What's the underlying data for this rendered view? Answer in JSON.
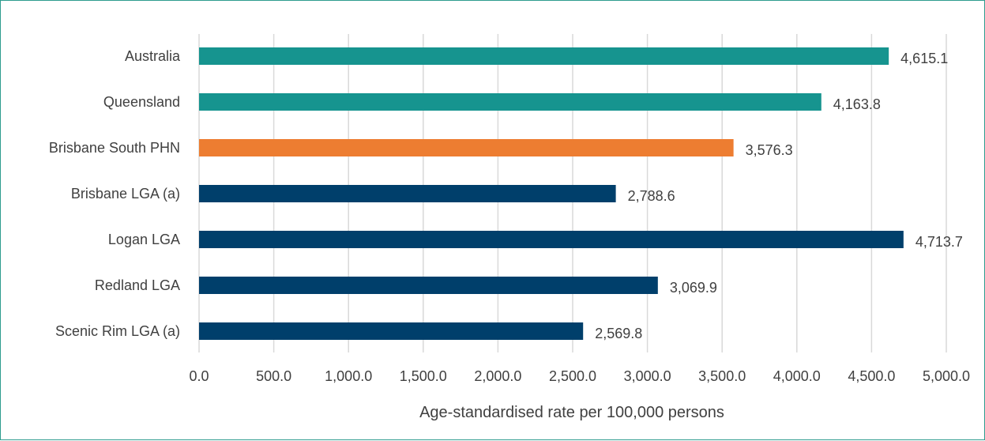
{
  "chart_data": {
    "type": "bar",
    "orientation": "horizontal",
    "categories": [
      "Australia",
      "Queensland",
      "Brisbane South PHN",
      "Brisbane LGA (a)",
      "Logan LGA",
      "Redland LGA",
      "Scenic Rim LGA (a)"
    ],
    "values": [
      4615.1,
      4163.8,
      3576.3,
      2788.6,
      4713.7,
      3069.9,
      2569.8
    ],
    "value_labels": [
      "4,615.1",
      "4,163.8",
      "3,576.3",
      "2,788.6",
      "4,713.7",
      "3,069.9",
      "2,569.8"
    ],
    "bar_colors": [
      "#16948f",
      "#16948f",
      "#ed7d31",
      "#003f6b",
      "#003f6b",
      "#003f6b",
      "#003f6b"
    ],
    "xlim": [
      0,
      5000
    ],
    "xticks": [
      0,
      500,
      1000,
      1500,
      2000,
      2500,
      3000,
      3500,
      4000,
      4500,
      5000
    ],
    "xtick_labels": [
      "0.0",
      "500.0",
      "1,000.0",
      "1,500.0",
      "2,000.0",
      "2,500.0",
      "3,000.0",
      "3,500.0",
      "4,000.0",
      "4,500.0",
      "5,000.0"
    ],
    "xlabel": "Age-standardised rate per 100,000 persons",
    "ylabel": "",
    "title": "",
    "grid": "vertical",
    "legend": "none"
  },
  "colors": {
    "border": "#2e9c8f",
    "grid": "#d9d9d9",
    "text": "#404040"
  }
}
